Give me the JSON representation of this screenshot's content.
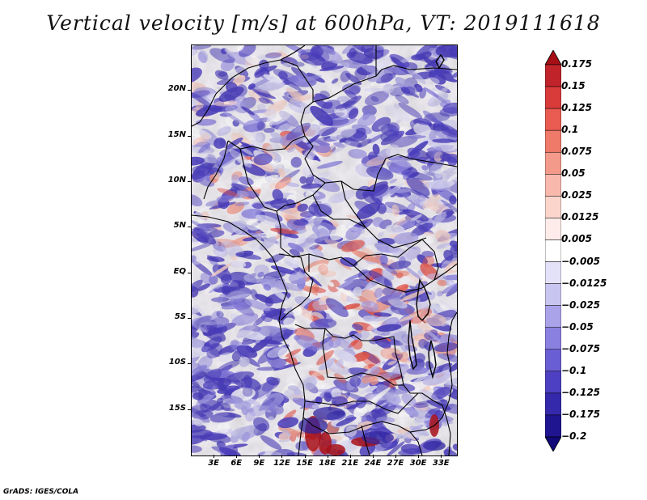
{
  "title": "Vertical velocity [m/s] at 600hPa, VT: 2019111618",
  "credit": "GrADS: IGES/COLA",
  "colors": {
    "positive_strong": "#a50f15",
    "positive_mid": "#ef6548",
    "positive_light": "#fcbba1",
    "neutral": "#ffffff",
    "negative_light": "#c6c6f2",
    "negative_mid": "#7b74e0",
    "negative_strong": "#2a1f9e"
  },
  "map": {
    "lon_range": [
      0,
      35
    ],
    "lat_range": [
      -20,
      25
    ],
    "lat_labels": [
      "20N",
      "15N",
      "10N",
      "5N",
      "EQ",
      "5S",
      "10S",
      "15S"
    ],
    "lat_values": [
      20,
      15,
      10,
      5,
      0,
      -5,
      -10,
      -15
    ],
    "lon_labels": [
      "3E",
      "6E",
      "9E",
      "12E",
      "15E",
      "18E",
      "21E",
      "24E",
      "27E",
      "30E",
      "33E"
    ],
    "lon_values": [
      3,
      6,
      9,
      12,
      15,
      18,
      21,
      24,
      27,
      30,
      33
    ]
  },
  "colorbar": {
    "labels": [
      "0.175",
      "0.15",
      "0.125",
      "0.1",
      "0.075",
      "0.05",
      "0.025",
      "0.0125",
      "0.005",
      "-0.005",
      "-0.0125",
      "-0.025",
      "-0.05",
      "-0.075",
      "-0.1",
      "-0.125",
      "-0.175",
      "-0.2"
    ],
    "colors": [
      "#a50f15",
      "#c0242a",
      "#d93a3a",
      "#e95a50",
      "#ef7a6a",
      "#f49a8a",
      "#f8b8ac",
      "#fbd5cc",
      "#fdecea",
      "#ffffff",
      "#e4e2f8",
      "#c9c5f1",
      "#aaa3ea",
      "#8a80e0",
      "#6a5ed4",
      "#4d40c2",
      "#3428ab",
      "#1f1590",
      "#110a78"
    ]
  }
}
